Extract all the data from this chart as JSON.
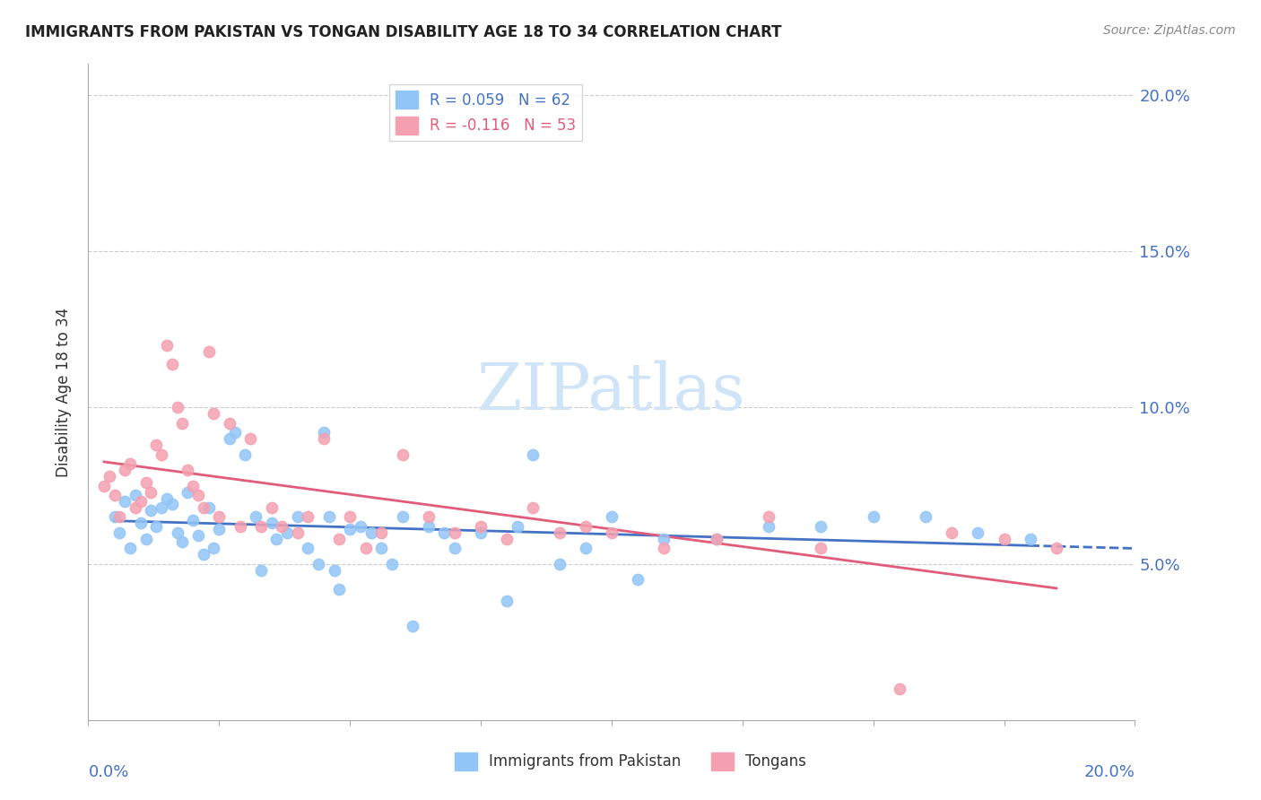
{
  "title": "IMMIGRANTS FROM PAKISTAN VS TONGAN DISABILITY AGE 18 TO 34 CORRELATION CHART",
  "source": "Source: ZipAtlas.com",
  "ylabel": "Disability Age 18 to 34",
  "right_yticks": [
    0.05,
    0.1,
    0.15,
    0.2
  ],
  "right_yticklabels": [
    "5.0%",
    "10.0%",
    "15.0%",
    "20.0%"
  ],
  "xmin": 0.0,
  "xmax": 0.2,
  "ymin": 0.0,
  "ymax": 0.21,
  "pakistan_color": "#92c5f7",
  "tongan_color": "#f4a0b0",
  "pakistan_line_color": "#4472c4",
  "tongan_line_color": "#e05c7a",
  "watermark": "ZIPatlas",
  "watermark_color": "#d0e4f7",
  "pakistan_scatter_x": [
    0.005,
    0.006,
    0.007,
    0.008,
    0.009,
    0.01,
    0.011,
    0.012,
    0.013,
    0.014,
    0.015,
    0.016,
    0.017,
    0.018,
    0.019,
    0.02,
    0.021,
    0.022,
    0.023,
    0.024,
    0.025,
    0.027,
    0.028,
    0.03,
    0.032,
    0.033,
    0.035,
    0.036,
    0.038,
    0.04,
    0.042,
    0.044,
    0.045,
    0.046,
    0.047,
    0.048,
    0.05,
    0.052,
    0.054,
    0.056,
    0.058,
    0.06,
    0.062,
    0.065,
    0.068,
    0.07,
    0.075,
    0.08,
    0.082,
    0.085,
    0.09,
    0.095,
    0.1,
    0.105,
    0.11,
    0.12,
    0.13,
    0.14,
    0.15,
    0.16,
    0.17,
    0.18
  ],
  "pakistan_scatter_y": [
    0.065,
    0.06,
    0.07,
    0.055,
    0.072,
    0.063,
    0.058,
    0.067,
    0.062,
    0.068,
    0.071,
    0.069,
    0.06,
    0.057,
    0.073,
    0.064,
    0.059,
    0.053,
    0.068,
    0.055,
    0.061,
    0.09,
    0.092,
    0.085,
    0.065,
    0.048,
    0.063,
    0.058,
    0.06,
    0.065,
    0.055,
    0.05,
    0.092,
    0.065,
    0.048,
    0.042,
    0.061,
    0.062,
    0.06,
    0.055,
    0.05,
    0.065,
    0.03,
    0.062,
    0.06,
    0.055,
    0.06,
    0.038,
    0.062,
    0.085,
    0.05,
    0.055,
    0.065,
    0.045,
    0.058,
    0.058,
    0.062,
    0.062,
    0.065,
    0.065,
    0.06,
    0.058
  ],
  "tongan_scatter_x": [
    0.003,
    0.004,
    0.005,
    0.006,
    0.007,
    0.008,
    0.009,
    0.01,
    0.011,
    0.012,
    0.013,
    0.014,
    0.015,
    0.016,
    0.017,
    0.018,
    0.019,
    0.02,
    0.021,
    0.022,
    0.023,
    0.024,
    0.025,
    0.027,
    0.029,
    0.031,
    0.033,
    0.035,
    0.037,
    0.04,
    0.042,
    0.045,
    0.048,
    0.05,
    0.053,
    0.056,
    0.06,
    0.065,
    0.07,
    0.075,
    0.08,
    0.085,
    0.09,
    0.095,
    0.1,
    0.11,
    0.12,
    0.13,
    0.14,
    0.155,
    0.165,
    0.175,
    0.185
  ],
  "tongan_scatter_y": [
    0.075,
    0.078,
    0.072,
    0.065,
    0.08,
    0.082,
    0.068,
    0.07,
    0.076,
    0.073,
    0.088,
    0.085,
    0.12,
    0.114,
    0.1,
    0.095,
    0.08,
    0.075,
    0.072,
    0.068,
    0.118,
    0.098,
    0.065,
    0.095,
    0.062,
    0.09,
    0.062,
    0.068,
    0.062,
    0.06,
    0.065,
    0.09,
    0.058,
    0.065,
    0.055,
    0.06,
    0.085,
    0.065,
    0.06,
    0.062,
    0.058,
    0.068,
    0.06,
    0.062,
    0.06,
    0.055,
    0.058,
    0.065,
    0.055,
    0.01,
    0.06,
    0.058,
    0.055
  ]
}
